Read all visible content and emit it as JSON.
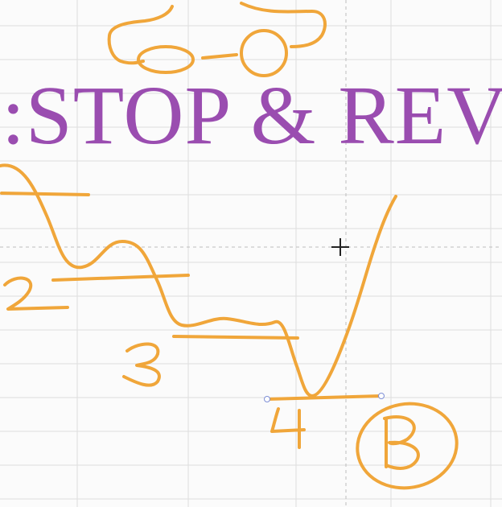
{
  "title": ":STOP & REV",
  "annotations": {
    "levels": [
      "2",
      "3",
      "4"
    ],
    "circled_label": "B"
  },
  "colors": {
    "title": "#9a4db0",
    "ink": "#f0a63a",
    "grid": "#dcdcdc",
    "guide": "#bdbdbd",
    "handle": "#7e8fd6"
  },
  "icons": {
    "cursor": "crosshair-cursor-icon",
    "handles": "selection-handle-icon"
  }
}
